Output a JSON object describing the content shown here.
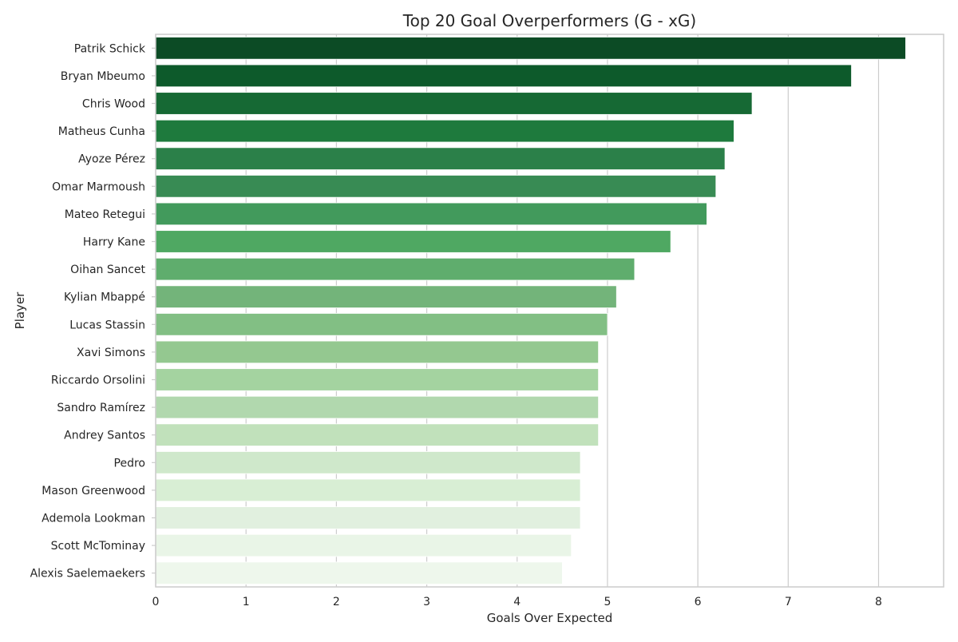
{
  "chart_data": {
    "type": "bar",
    "orientation": "horizontal",
    "title": "Top 20 Goal Overperformers (G - xG)",
    "xlabel": "Goals Over Expected",
    "ylabel": "Player",
    "xlim": [
      0,
      8.72
    ],
    "xticks": [
      0,
      1,
      2,
      3,
      4,
      5,
      6,
      7,
      8
    ],
    "grid": true,
    "categories": [
      "Patrik Schick",
      "Bryan Mbeumo",
      "Chris Wood",
      "Matheus Cunha",
      "Ayoze Pérez",
      "Omar Marmoush",
      "Mateo Retegui",
      "Harry Kane",
      "Oihan Sancet",
      "Kylian Mbappé",
      "Lucas Stassin",
      "Xavi Simons",
      "Riccardo Orsolini",
      "Sandro Ramírez",
      "Andrey Santos",
      "Pedro",
      "Mason Greenwood",
      "Ademola Lookman",
      "Scott McTominay",
      "Alexis Saelemaekers"
    ],
    "values": [
      8.3,
      7.7,
      6.6,
      6.4,
      6.3,
      6.2,
      6.1,
      5.7,
      5.3,
      5.1,
      5.0,
      4.9,
      4.9,
      4.9,
      4.9,
      4.7,
      4.7,
      4.7,
      4.6,
      4.5
    ],
    "colors": [
      "#0c4b25",
      "#0d5a2b",
      "#166934",
      "#1e7a3d",
      "#2b8049",
      "#388b54",
      "#429a5c",
      "#4fa862",
      "#5fad6d",
      "#73b47a",
      "#82bf84",
      "#94c890",
      "#a4d3a0",
      "#b1d8ae",
      "#c1e1bb",
      "#cfe8cb",
      "#d8eed4",
      "#e1f0df",
      "#e9f5e7",
      "#eef7ec"
    ]
  }
}
